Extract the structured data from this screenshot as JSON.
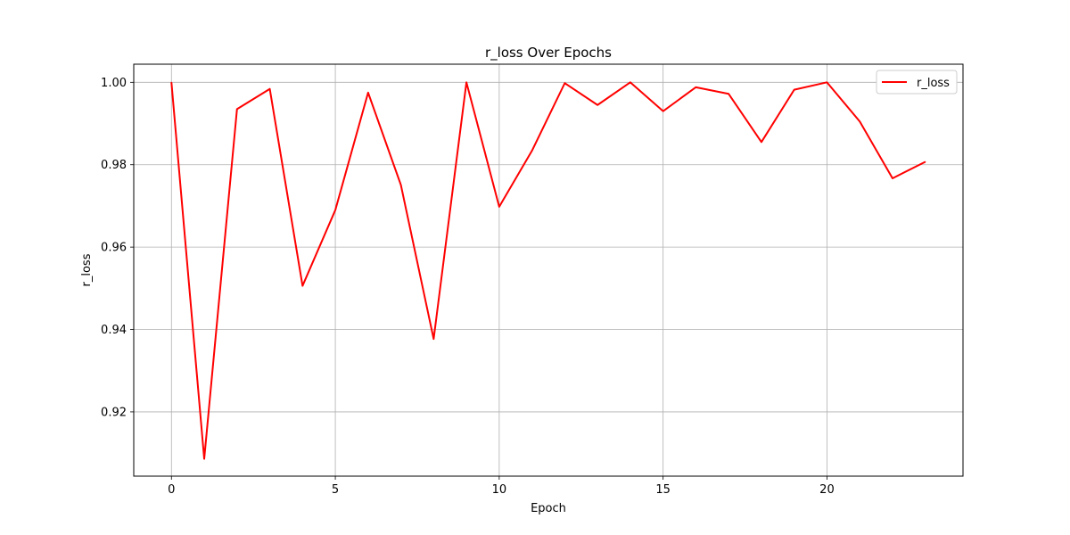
{
  "chart_data": {
    "type": "line",
    "title": "r_loss Over Epochs",
    "xlabel": "Epoch",
    "ylabel": "r_loss",
    "xlim": [
      -1.15,
      24.15
    ],
    "ylim": [
      0.9044,
      1.0044
    ],
    "xticks": [
      0,
      5,
      10,
      15,
      20
    ],
    "xtick_labels": [
      "0",
      "5",
      "10",
      "15",
      "20"
    ],
    "yticks": [
      0.92,
      0.94,
      0.96,
      0.98,
      1.0
    ],
    "ytick_labels": [
      "0.92",
      "0.94",
      "0.96",
      "0.98",
      "1.00"
    ],
    "grid": true,
    "legend_position": "top-right",
    "series": [
      {
        "name": "r_loss",
        "color": "#ff0000",
        "x": [
          0,
          1,
          2,
          3,
          4,
          5,
          6,
          7,
          8,
          9,
          10,
          11,
          12,
          13,
          14,
          15,
          16,
          17,
          18,
          19,
          20,
          21,
          22,
          23
        ],
        "y": [
          1.0,
          0.9086,
          0.9935,
          0.9984,
          0.9506,
          0.969,
          0.9975,
          0.9751,
          0.9377,
          1.0,
          0.9698,
          0.9834,
          0.9998,
          0.9945,
          1.0,
          0.993,
          0.9988,
          0.9972,
          0.9855,
          0.9982,
          1.0,
          0.9905,
          0.9767,
          0.9807
        ]
      }
    ]
  }
}
